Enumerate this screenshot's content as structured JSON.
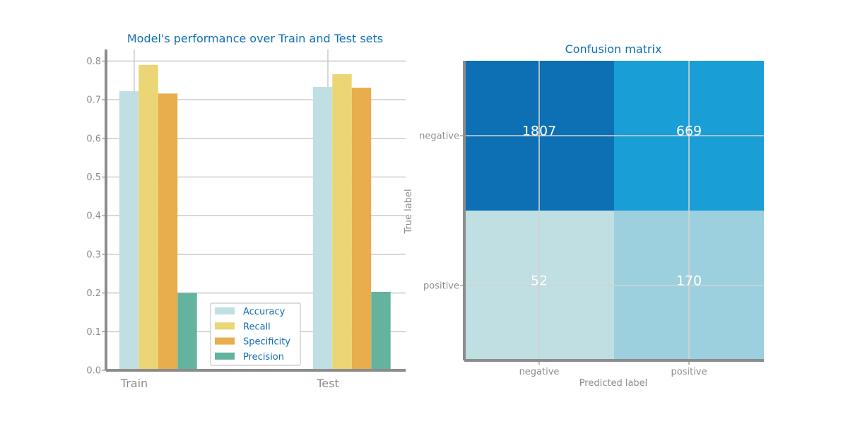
{
  "chart_data": [
    {
      "type": "bar",
      "title": "Model's performance over Train and Test sets",
      "categories": [
        "Train",
        "Test"
      ],
      "series": [
        {
          "name": "Accuracy",
          "color": "#bfdfe2",
          "values": [
            0.722,
            0.733
          ]
        },
        {
          "name": "Recall",
          "color": "#ebd574",
          "values": [
            0.79,
            0.766
          ]
        },
        {
          "name": "Specificity",
          "color": "#e8ad4c",
          "values": [
            0.716,
            0.731
          ]
        },
        {
          "name": "Precision",
          "color": "#64b39f",
          "values": [
            0.2,
            0.203
          ]
        }
      ],
      "yticks": [
        "0.0",
        "0.1",
        "0.2",
        "0.3",
        "0.4",
        "0.5",
        "0.6",
        "0.7",
        "0.8"
      ],
      "ylim": [
        0,
        0.83
      ],
      "grid": true,
      "legend_position": "bottom-center"
    },
    {
      "type": "heatmap",
      "title": "Confusion matrix",
      "xlabel": "Predicted label",
      "ylabel": "True label",
      "x_categories": [
        "negative",
        "positive"
      ],
      "y_categories": [
        "negative",
        "positive"
      ],
      "values": [
        [
          1807,
          669
        ],
        [
          52,
          170
        ]
      ],
      "colors": [
        [
          "#0e70b4",
          "#1a9ed6"
        ],
        [
          "#bfdfe2",
          "#9dd0de"
        ]
      ]
    }
  ]
}
